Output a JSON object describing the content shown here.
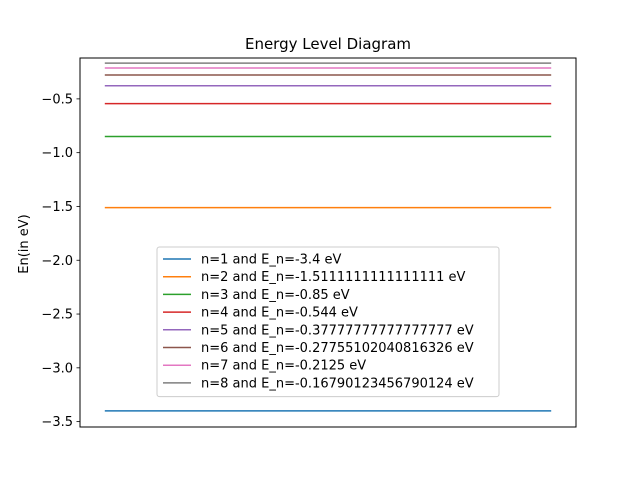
{
  "chart_data": {
    "type": "line",
    "title": "Energy Level Diagram",
    "xlabel": "",
    "ylabel": "En(in eV)",
    "ylim": [
      -3.55,
      -0.12
    ],
    "xlim": [
      0,
      1
    ],
    "x": [
      0.05,
      0.95
    ],
    "yticks": [
      -3.5,
      -3.0,
      -2.5,
      -2.0,
      -1.5,
      -1.0,
      -0.5
    ],
    "ytick_labels": [
      "−3.5",
      "−3.0",
      "−2.5",
      "−2.0",
      "−1.5",
      "−1.0",
      "−0.5"
    ],
    "grid": false,
    "legend_position": "lower center",
    "series": [
      {
        "name": "n=1 and E_n=-3.4 eV",
        "value": -3.4,
        "color": "#1f77b4"
      },
      {
        "name": "n=2 and E_n=-1.5111111111111111 eV",
        "value": -1.511111111111111,
        "color": "#ff7f0e"
      },
      {
        "name": "n=3 and E_n=-0.85 eV",
        "value": -0.85,
        "color": "#2ca02c"
      },
      {
        "name": "n=4 and E_n=-0.544 eV",
        "value": -0.544,
        "color": "#d62728"
      },
      {
        "name": "n=5 and E_n=-0.37777777777777777 eV",
        "value": -0.37777777777777777,
        "color": "#9467bd"
      },
      {
        "name": "n=6 and E_n=-0.27755102040816326 eV",
        "value": -0.27755102040816326,
        "color": "#8c564b"
      },
      {
        "name": "n=7 and E_n=-0.2125 eV",
        "value": -0.2125,
        "color": "#e377c2"
      },
      {
        "name": "n=8 and E_n=-0.16790123456790124 eV",
        "value": -0.16790123456790124,
        "color": "#7f7f7f"
      }
    ]
  }
}
